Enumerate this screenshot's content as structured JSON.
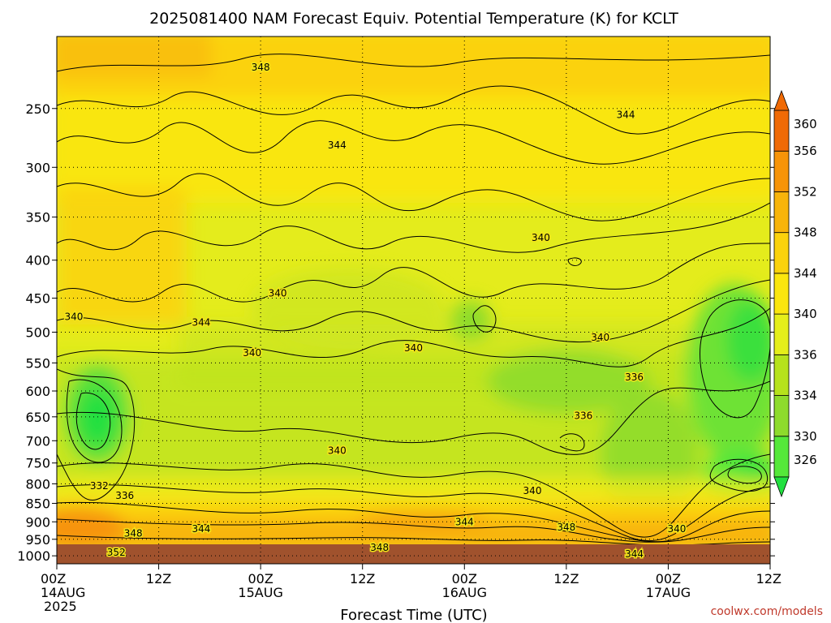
{
  "chart_data": {
    "type": "heatmap",
    "title": "2025081400 NAM Forecast Equiv. Potential Temperature (K) for KCLT",
    "xlabel": "Forecast Time (UTC)",
    "ylabel": "",
    "x_ticks": [
      {
        "hour": 0,
        "label": "00Z",
        "date": "14AUG",
        "year": "2025"
      },
      {
        "hour": 12,
        "label": "12Z",
        "date": "",
        "year": ""
      },
      {
        "hour": 24,
        "label": "00Z",
        "date": "15AUG",
        "year": ""
      },
      {
        "hour": 36,
        "label": "12Z",
        "date": "",
        "year": ""
      },
      {
        "hour": 48,
        "label": "00Z",
        "date": "16AUG",
        "year": ""
      },
      {
        "hour": 60,
        "label": "12Z",
        "date": "",
        "year": ""
      },
      {
        "hour": 72,
        "label": "00Z",
        "date": "17AUG",
        "year": ""
      },
      {
        "hour": 84,
        "label": "12Z",
        "date": "",
        "year": ""
      }
    ],
    "xlim": [
      0,
      84
    ],
    "y_ticks": [
      250,
      300,
      350,
      400,
      450,
      500,
      550,
      600,
      650,
      700,
      750,
      800,
      850,
      900,
      950,
      1000
    ],
    "ylim": [
      1025,
      200
    ],
    "y_scale": "log",
    "grid": "dotted",
    "colorbar": {
      "levels": [
        326,
        330,
        334,
        336,
        340,
        344,
        348,
        352,
        356,
        360
      ],
      "colors": [
        "#22e040",
        "#55e83a",
        "#8edb2c",
        "#b6e21c",
        "#e5ee1a",
        "#fbe60e",
        "#fbd20c",
        "#f8b40a",
        "#f79408",
        "#f06a05"
      ],
      "extend": "both"
    },
    "contour_labels": [
      {
        "value": "348",
        "hour": 24,
        "p": 220
      },
      {
        "value": "344",
        "hour": 33,
        "p": 280
      },
      {
        "value": "344",
        "hour": 67,
        "p": 255
      },
      {
        "value": "340",
        "hour": 2,
        "p": 477
      },
      {
        "value": "344",
        "hour": 17,
        "p": 485
      },
      {
        "value": "340",
        "hour": 26,
        "p": 443
      },
      {
        "value": "340",
        "hour": 23,
        "p": 533
      },
      {
        "value": "340",
        "hour": 42,
        "p": 525
      },
      {
        "value": "340",
        "hour": 57,
        "p": 373
      },
      {
        "value": "340",
        "hour": 64,
        "p": 508
      },
      {
        "value": "336",
        "hour": 68,
        "p": 575
      },
      {
        "value": "336",
        "hour": 62,
        "p": 648
      },
      {
        "value": "340",
        "hour": 33,
        "p": 722
      },
      {
        "value": "340",
        "hour": 56,
        "p": 817
      },
      {
        "value": "332",
        "hour": 5,
        "p": 805
      },
      {
        "value": "336",
        "hour": 8,
        "p": 830
      },
      {
        "value": "348",
        "hour": 9,
        "p": 933
      },
      {
        "value": "344",
        "hour": 17,
        "p": 920
      },
      {
        "value": "352",
        "hour": 7,
        "p": 990
      },
      {
        "value": "344",
        "hour": 48,
        "p": 900
      },
      {
        "value": "348",
        "hour": 38,
        "p": 975
      },
      {
        "value": "348",
        "hour": 60,
        "p": 915
      },
      {
        "value": "340",
        "hour": 73,
        "p": 920
      },
      {
        "value": "344",
        "hour": 68,
        "p": 995
      }
    ]
  },
  "credit": "coolwx.com/models",
  "terrain_color": "#a0522d"
}
